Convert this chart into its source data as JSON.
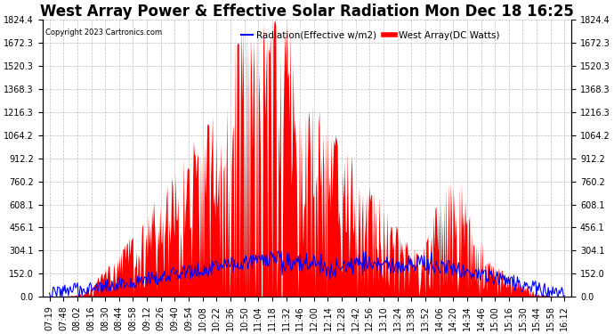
{
  "title": "West Array Power & Effective Solar Radiation Mon Dec 18 16:25",
  "copyright": "Copyright 2023 Cartronics.com",
  "legend_radiation": "Radiation(Effective w/m2)",
  "legend_west": "West Array(DC Watts)",
  "radiation_color": "blue",
  "west_color": "red",
  "background_color": "#ffffff",
  "yticks": [
    0.0,
    152.0,
    304.1,
    456.1,
    608.1,
    760.2,
    912.2,
    1064.2,
    1216.3,
    1368.3,
    1520.3,
    1672.3,
    1824.4
  ],
  "ylim": [
    0,
    1824.4
  ],
  "xtick_labels": [
    "07:19",
    "07:48",
    "08:02",
    "08:16",
    "08:30",
    "08:44",
    "08:58",
    "09:12",
    "09:26",
    "09:40",
    "09:54",
    "10:08",
    "10:22",
    "10:36",
    "10:50",
    "11:04",
    "11:18",
    "11:32",
    "11:46",
    "12:00",
    "12:14",
    "12:28",
    "12:42",
    "12:56",
    "13:10",
    "13:24",
    "13:38",
    "13:52",
    "14:06",
    "14:20",
    "14:34",
    "14:46",
    "15:00",
    "15:16",
    "15:30",
    "15:44",
    "15:58",
    "16:12"
  ],
  "n_xticks": 38,
  "n_samples": 570,
  "grid_color": "#bbbbbb",
  "grid_linestyle": "--",
  "title_fontsize": 12,
  "tick_fontsize": 7,
  "copyright_fontsize": 6
}
